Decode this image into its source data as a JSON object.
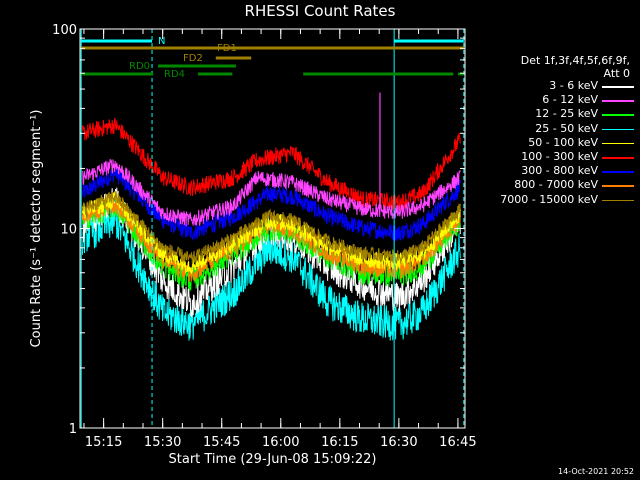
{
  "chart_data": {
    "type": "line",
    "title": "RHESSI Count Rates",
    "xlabel": "Start Time (29-Jun-08 15:09:22)",
    "ylabel": "Count Rate (s⁻¹ detector segment⁻¹)",
    "yscale": "log",
    "ylim": [
      1,
      100
    ],
    "y_ticks": [
      "1",
      "10",
      "100"
    ],
    "xlim_minutes": [
      15.15,
      16.78
    ],
    "x_tick_labels": [
      "15:15",
      "15:30",
      "15:45",
      "16:00",
      "16:15",
      "16:30",
      "16:45"
    ],
    "x_tick_values_hours": [
      15.25,
      15.5,
      15.75,
      16.0,
      16.25,
      16.5,
      16.75
    ],
    "grid": false,
    "legend_position": "right",
    "legend_title": "Det 1f,3f,4f,5f,6f,9f,",
    "legend_subtitle": "Att 0",
    "series": [
      {
        "name": "3 - 6 keV",
        "color": "#ffffff",
        "x_hours": [
          15.16,
          15.3,
          15.5,
          15.62,
          15.8,
          15.95,
          16.05,
          16.2,
          16.35,
          16.5,
          16.6,
          16.76
        ],
        "values": [
          10,
          14,
          5.5,
          4.2,
          6.5,
          10,
          9,
          6.5,
          5.2,
          4.5,
          5.5,
          11
        ]
      },
      {
        "name": "6 - 12 keV",
        "color": "#ff44ff",
        "x_hours": [
          15.16,
          15.3,
          15.5,
          15.62,
          15.8,
          15.9,
          16.05,
          16.2,
          16.35,
          16.5,
          16.6,
          16.76
        ],
        "values": [
          18,
          21,
          12,
          11,
          13,
          18,
          17,
          14,
          12.5,
          12,
          13,
          18
        ]
      },
      {
        "name": "12 - 25 keV",
        "color": "#00ff00",
        "x_hours": [
          15.16,
          15.3,
          15.5,
          15.62,
          15.8,
          15.95,
          16.05,
          16.2,
          16.35,
          16.5,
          16.6,
          16.76
        ],
        "values": [
          11,
          13,
          6.5,
          5.5,
          7.5,
          10,
          9.5,
          7.2,
          6,
          5.8,
          6.5,
          11
        ]
      },
      {
        "name": "25 - 50 keV",
        "color": "#00ffff",
        "x_hours": [
          15.16,
          15.3,
          15.5,
          15.62,
          15.8,
          15.95,
          16.05,
          16.2,
          16.35,
          16.5,
          16.6,
          16.76
        ],
        "values": [
          9,
          11,
          3.8,
          3.3,
          4.8,
          8,
          7.2,
          4.3,
          3.5,
          3.3,
          3.8,
          8
        ]
      },
      {
        "name": "50 - 100 keV",
        "color": "#ffff00",
        "x_hours": [
          15.16,
          15.3,
          15.5,
          15.62,
          15.8,
          15.95,
          16.05,
          16.2,
          16.35,
          16.5,
          16.6,
          16.76
        ],
        "values": [
          12,
          14,
          7.5,
          6.5,
          8.5,
          11,
          10.5,
          8.2,
          7,
          6.8,
          7.5,
          12
        ]
      },
      {
        "name": "100 - 300 keV",
        "color": "#ff0000",
        "x_hours": [
          15.16,
          15.3,
          15.5,
          15.62,
          15.8,
          15.9,
          16.05,
          16.2,
          16.35,
          16.5,
          16.6,
          16.76
        ],
        "values": [
          30,
          33,
          18,
          16,
          18,
          22,
          24,
          17,
          14,
          13.5,
          15,
          28
        ]
      },
      {
        "name": "300 - 800 keV",
        "color": "#0000ff",
        "x_hours": [
          15.16,
          15.3,
          15.5,
          15.62,
          15.8,
          15.95,
          16.05,
          16.2,
          16.35,
          16.5,
          16.6,
          16.76
        ],
        "values": [
          15,
          19,
          11,
          9.5,
          11.5,
          15,
          14.5,
          11.5,
          10,
          9.5,
          10.5,
          16
        ]
      },
      {
        "name": "800 - 7000 keV",
        "color": "#ff8000",
        "x_hours": [
          15.16,
          15.3,
          15.5,
          15.62,
          15.8,
          15.95,
          16.05,
          16.2,
          16.35,
          16.5,
          16.6,
          16.76
        ],
        "values": [
          11.5,
          13.5,
          7,
          6,
          8,
          10.5,
          10,
          7.6,
          6.5,
          6.2,
          7,
          11.5
        ]
      },
      {
        "name": "7000 - 15000 keV",
        "color": "#a08000",
        "x_hours": [
          15.16,
          15.3,
          15.5,
          15.62,
          15.8,
          15.95,
          16.05,
          16.2,
          16.35,
          16.5,
          16.6,
          16.76
        ],
        "values": [
          12.5,
          14.5,
          8,
          7,
          9,
          11.5,
          11,
          8.6,
          7.5,
          7.2,
          8,
          12.5
        ]
      }
    ],
    "spike": {
      "series": "6 - 12 keV",
      "x_hours": 16.42,
      "value": 48
    },
    "vertical_markers": {
      "solid_hours": [
        15.155,
        16.48
      ],
      "dashed_hours": [
        15.455,
        16.775
      ],
      "color": "#00ffff"
    },
    "flag_bars": [
      {
        "label": "N",
        "color": "#00ffff",
        "row": 1,
        "spans_hours": [
          [
            15.155,
            15.455
          ],
          [
            16.48,
            16.775
          ]
        ]
      },
      {
        "label": "FD1",
        "color": "#a08000",
        "row": 2,
        "spans_hours": [
          [
            15.155,
            15.885
          ],
          [
            15.885,
            16.775
          ]
        ]
      },
      {
        "label": "FD2",
        "color": "#a08000",
        "row": 3,
        "spans_hours": [
          [
            15.725,
            15.875
          ]
        ]
      },
      {
        "label": "RD0",
        "color": "#008800",
        "row": 4,
        "spans_hours": [
          [
            15.48,
            15.81
          ]
        ]
      },
      {
        "label": "RD4",
        "color": "#008800",
        "row": 5,
        "spans_hours": [
          [
            15.155,
            15.46
          ],
          [
            15.65,
            15.795
          ],
          [
            16.095,
            16.73
          ],
          [
            16.75,
            16.775
          ]
        ]
      }
    ]
  },
  "timestamp": "14-Oct-2021 20:52"
}
